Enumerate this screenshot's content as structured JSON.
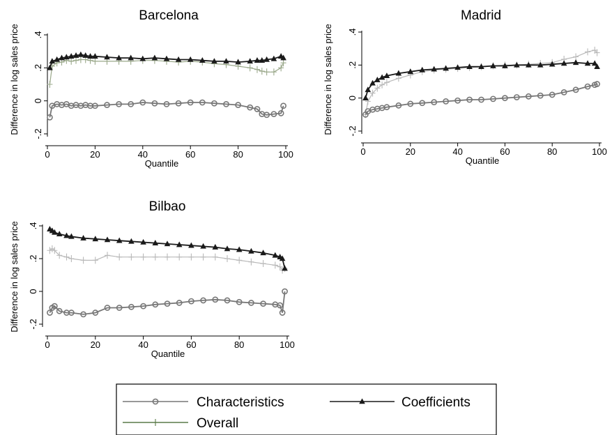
{
  "chart_data": [
    {
      "type": "line",
      "title": "Barcelona",
      "xlabel": "Quantile",
      "ylabel": "Difference in log sales price",
      "xlim": [
        0,
        100
      ],
      "ylim": [
        -0.2,
        0.4
      ],
      "x_ticks": [
        0,
        20,
        40,
        60,
        80,
        100
      ],
      "y_ticks": [
        -0.2,
        0,
        0.2,
        0.4
      ],
      "y_tick_labels": [
        "-.2",
        "0",
        ".2",
        ".4"
      ],
      "x": [
        1,
        2,
        4,
        6,
        8,
        10,
        12,
        14,
        16,
        18,
        20,
        25,
        30,
        35,
        40,
        45,
        50,
        55,
        60,
        65,
        70,
        75,
        80,
        85,
        88,
        90,
        92,
        95,
        98,
        99
      ],
      "series": [
        {
          "name": "Characteristics",
          "marker": "circle",
          "color": "#777777",
          "values": [
            -0.1,
            -0.03,
            -0.02,
            -0.025,
            -0.02,
            -0.03,
            -0.025,
            -0.03,
            -0.025,
            -0.03,
            -0.03,
            -0.025,
            -0.02,
            -0.02,
            -0.01,
            -0.015,
            -0.02,
            -0.015,
            -0.01,
            -0.01,
            -0.015,
            -0.02,
            -0.025,
            -0.04,
            -0.05,
            -0.08,
            -0.085,
            -0.08,
            -0.075,
            -0.03
          ]
        },
        {
          "name": "Coefficients",
          "marker": "triangle",
          "color": "#1a1a1a",
          "values": [
            0.2,
            0.24,
            0.25,
            0.26,
            0.265,
            0.27,
            0.275,
            0.28,
            0.275,
            0.27,
            0.27,
            0.265,
            0.26,
            0.26,
            0.255,
            0.26,
            0.255,
            0.25,
            0.25,
            0.245,
            0.24,
            0.24,
            0.235,
            0.24,
            0.245,
            0.245,
            0.25,
            0.255,
            0.27,
            0.26
          ]
        },
        {
          "name": "Overall",
          "marker": "plus",
          "color": "#9aa88a",
          "values": [
            0.1,
            0.21,
            0.23,
            0.235,
            0.245,
            0.24,
            0.245,
            0.25,
            0.25,
            0.245,
            0.24,
            0.24,
            0.24,
            0.24,
            0.245,
            0.245,
            0.24,
            0.235,
            0.24,
            0.235,
            0.225,
            0.22,
            0.21,
            0.2,
            0.19,
            0.18,
            0.175,
            0.175,
            0.2,
            0.23
          ]
        }
      ]
    },
    {
      "type": "line",
      "title": "Madrid",
      "xlabel": "Quantile",
      "ylabel": "Difference in log sales price",
      "xlim": [
        0,
        100
      ],
      "ylim": [
        -0.2,
        0.4
      ],
      "x_ticks": [
        0,
        20,
        40,
        60,
        80,
        100
      ],
      "y_ticks": [
        -0.2,
        0,
        0.2,
        0.4
      ],
      "y_tick_labels": [
        "-.2",
        "0",
        ".2",
        ".4"
      ],
      "x": [
        1,
        2,
        4,
        6,
        8,
        10,
        15,
        20,
        25,
        30,
        35,
        40,
        45,
        50,
        55,
        60,
        65,
        70,
        75,
        80,
        85,
        90,
        95,
        98,
        99
      ],
      "series": [
        {
          "name": "Characteristics",
          "marker": "circle",
          "color": "#777777",
          "values": [
            -0.1,
            -0.08,
            -0.07,
            -0.065,
            -0.06,
            -0.055,
            -0.045,
            -0.035,
            -0.03,
            -0.025,
            -0.02,
            -0.015,
            -0.01,
            -0.01,
            -0.005,
            0.0,
            0.005,
            0.01,
            0.015,
            0.02,
            0.035,
            0.05,
            0.07,
            0.08,
            0.085
          ]
        },
        {
          "name": "Coefficients",
          "marker": "triangle",
          "color": "#1a1a1a",
          "values": [
            0.0,
            0.05,
            0.09,
            0.11,
            0.125,
            0.135,
            0.15,
            0.16,
            0.17,
            0.175,
            0.18,
            0.185,
            0.19,
            0.19,
            0.195,
            0.195,
            0.2,
            0.2,
            0.2,
            0.205,
            0.21,
            0.215,
            0.21,
            0.21,
            0.19
          ]
        },
        {
          "name": "Overall",
          "marker": "plus",
          "color": "#b9b9b9",
          "values": [
            -0.1,
            -0.02,
            0.03,
            0.06,
            0.08,
            0.095,
            0.12,
            0.14,
            0.16,
            0.17,
            0.175,
            0.18,
            0.185,
            0.19,
            0.195,
            0.2,
            0.2,
            0.205,
            0.21,
            0.215,
            0.235,
            0.25,
            0.28,
            0.29,
            0.275
          ]
        }
      ]
    },
    {
      "type": "line",
      "title": "Bilbao",
      "xlabel": "Quantile",
      "ylabel": "Difference in log sales price",
      "xlim": [
        0,
        100
      ],
      "ylim": [
        -0.2,
        0.4
      ],
      "x_ticks": [
        0,
        20,
        40,
        60,
        80,
        100
      ],
      "y_ticks": [
        -0.2,
        0,
        0.2,
        0.4
      ],
      "y_tick_labels": [
        "-.2",
        "0",
        ".2",
        ".4"
      ],
      "x": [
        1,
        2,
        3,
        5,
        8,
        10,
        15,
        20,
        25,
        30,
        35,
        40,
        45,
        50,
        55,
        60,
        65,
        70,
        75,
        80,
        85,
        90,
        95,
        97,
        98,
        99
      ],
      "series": [
        {
          "name": "Characteristics",
          "marker": "circle",
          "color": "#777777",
          "values": [
            -0.13,
            -0.1,
            -0.09,
            -0.12,
            -0.13,
            -0.13,
            -0.14,
            -0.13,
            -0.1,
            -0.1,
            -0.095,
            -0.09,
            -0.08,
            -0.075,
            -0.07,
            -0.06,
            -0.055,
            -0.05,
            -0.055,
            -0.065,
            -0.07,
            -0.075,
            -0.08,
            -0.085,
            -0.13,
            0.0
          ]
        },
        {
          "name": "Coefficients",
          "marker": "triangle",
          "color": "#1a1a1a",
          "values": [
            0.38,
            0.37,
            0.36,
            0.35,
            0.34,
            0.335,
            0.325,
            0.32,
            0.315,
            0.31,
            0.305,
            0.3,
            0.295,
            0.29,
            0.285,
            0.28,
            0.275,
            0.27,
            0.26,
            0.255,
            0.245,
            0.235,
            0.22,
            0.21,
            0.2,
            0.14
          ]
        },
        {
          "name": "Overall",
          "marker": "plus",
          "color": "#b9b9b9",
          "values": [
            0.25,
            0.26,
            0.25,
            0.22,
            0.21,
            0.2,
            0.19,
            0.19,
            0.22,
            0.21,
            0.21,
            0.21,
            0.21,
            0.21,
            0.21,
            0.21,
            0.21,
            0.21,
            0.2,
            0.19,
            0.18,
            0.17,
            0.16,
            0.15,
            0.13,
            0.14
          ]
        }
      ]
    }
  ],
  "legend": {
    "items": [
      {
        "label": "Characteristics",
        "marker": "circle",
        "color": "#777777"
      },
      {
        "label": "Coefficients",
        "marker": "triangle",
        "color": "#1a1a1a"
      },
      {
        "label": "Overall",
        "marker": "plus",
        "color": "#5a7a48"
      }
    ]
  }
}
